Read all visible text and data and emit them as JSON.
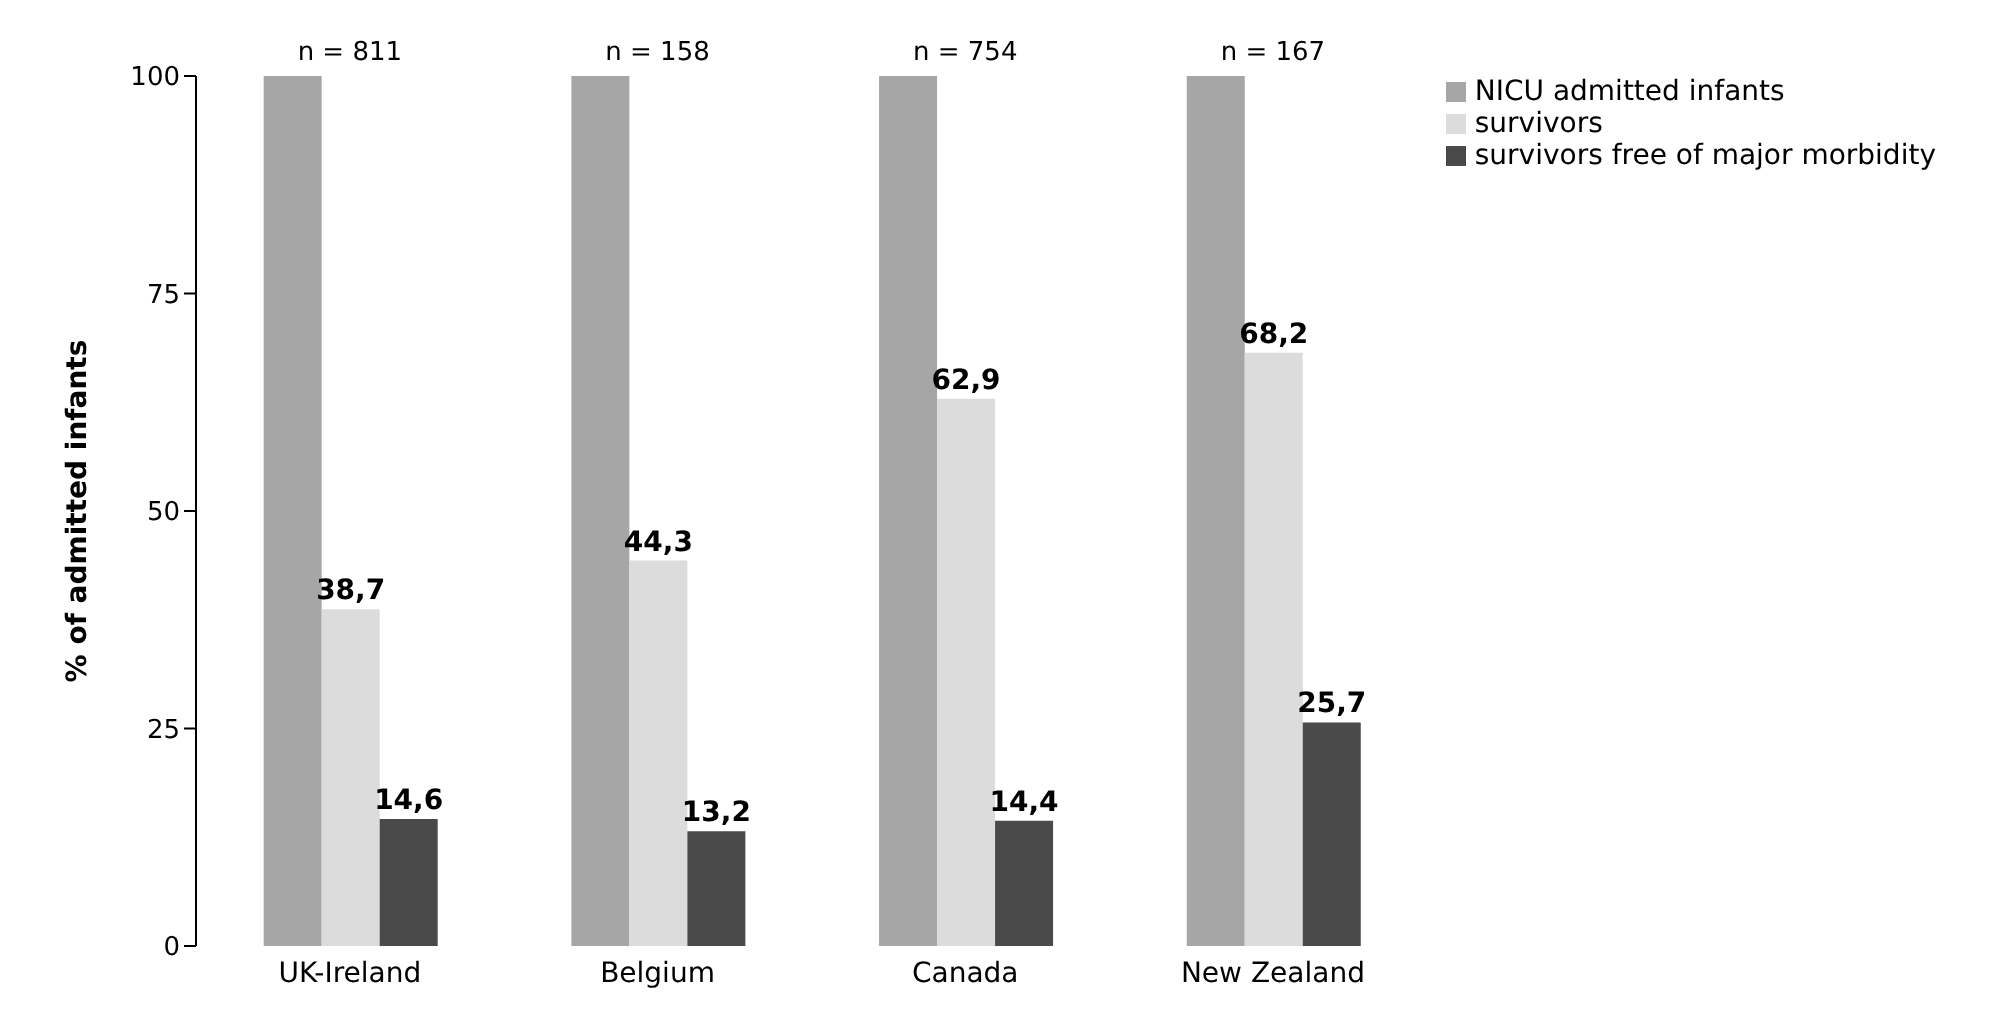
{
  "chart_data": {
    "type": "bar",
    "ylabel": "% of admitted infants",
    "categories": [
      "UK-Ireland",
      "Belgium",
      "Canada",
      "New Zealand"
    ],
    "series": [
      {
        "name": "NICU admitted infants",
        "color": "#a6a6a6",
        "values": [
          100,
          100,
          100,
          100
        ]
      },
      {
        "name": "survivors",
        "color": "#dcdcdc",
        "values": [
          38.7,
          44.3,
          62.9,
          68.2
        ],
        "value_labels": [
          "38,7",
          "44,3",
          "62,9",
          "68,2"
        ]
      },
      {
        "name": "survivors free of major morbidity",
        "color": "#4a4a4a",
        "values": [
          14.6,
          13.2,
          14.4,
          25.7
        ],
        "value_labels": [
          "14,6",
          "13,2",
          "14,4",
          "25,7"
        ]
      }
    ],
    "annotations": [
      "n = 811",
      "n = 158",
      "n = 754",
      "n = 167"
    ],
    "ylim": [
      0,
      100
    ],
    "yticks": [
      0,
      25,
      50,
      75,
      100
    ],
    "grid": false,
    "legend": "top right"
  }
}
